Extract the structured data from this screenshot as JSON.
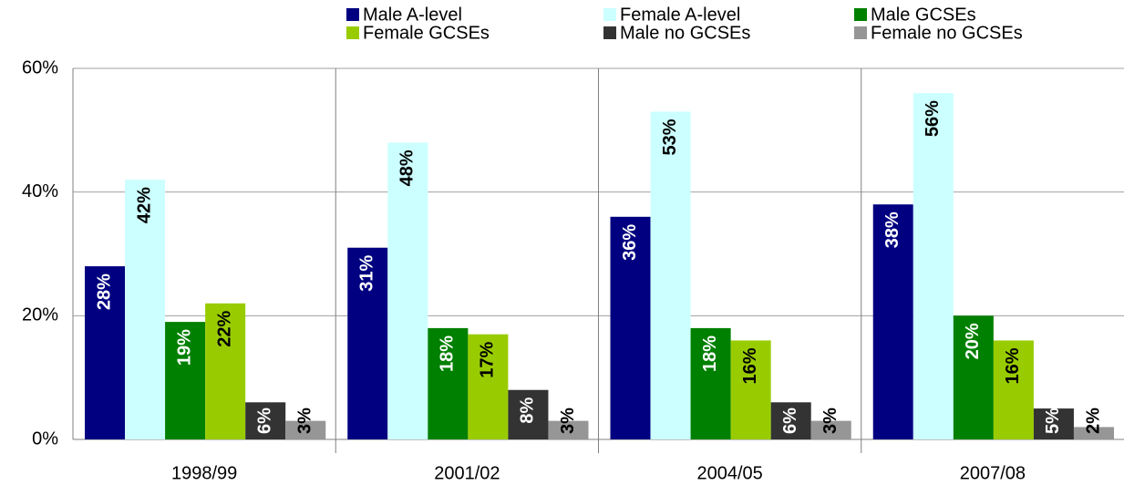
{
  "chart_data": {
    "type": "bar",
    "categories": [
      "1998/99",
      "2001/02",
      "2004/05",
      "2007/08"
    ],
    "series": [
      {
        "name": "Male A-level",
        "color": "#000080",
        "values": [
          28,
          31,
          36,
          38
        ],
        "value_labels": [
          "28%",
          "31%",
          "36%",
          "38%"
        ]
      },
      {
        "name": "Female A-level",
        "color": "#ccffff",
        "values": [
          42,
          48,
          53,
          56
        ],
        "value_labels": [
          "42%",
          "48%",
          "53%",
          "56%"
        ]
      },
      {
        "name": "Male GCSEs",
        "color": "#008000",
        "values": [
          19,
          18,
          18,
          20
        ],
        "value_labels": [
          "19%",
          "18%",
          "18%",
          "20%"
        ]
      },
      {
        "name": "Female GCSEs",
        "color": "#99cc00",
        "values": [
          22,
          17,
          16,
          16
        ],
        "value_labels": [
          "22%",
          "17%",
          "16%",
          "16%"
        ]
      },
      {
        "name": "Male no GCSEs",
        "color": "#333333",
        "values": [
          6,
          8,
          6,
          5
        ],
        "value_labels": [
          "6%",
          "8%",
          "6%",
          "5%"
        ]
      },
      {
        "name": "Female no GCSEs",
        "color": "#969696",
        "values": [
          3,
          3,
          3,
          2
        ],
        "value_labels": [
          "3%",
          "3%",
          "3%",
          "2%"
        ]
      }
    ],
    "ylim": [
      0,
      60
    ],
    "yticks": [
      {
        "value": 0,
        "label": "0%"
      },
      {
        "value": 20,
        "label": "20%"
      },
      {
        "value": 40,
        "label": "40%"
      },
      {
        "value": 60,
        "label": "60%"
      }
    ],
    "grid": true,
    "legend": "top"
  }
}
